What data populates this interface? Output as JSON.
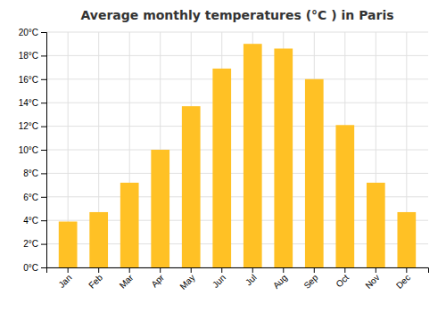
{
  "chart_data": {
    "type": "bar",
    "title": "Average monthly temperatures (°C ) in Paris",
    "categories": [
      "Jan",
      "Feb",
      "Mar",
      "Apr",
      "May",
      "Jun",
      "Jul",
      "Aug",
      "Sep",
      "Oct",
      "Nov",
      "Dec"
    ],
    "values": [
      3.9,
      4.7,
      7.2,
      10.0,
      13.7,
      16.9,
      19.0,
      18.6,
      16.0,
      12.1,
      7.2,
      4.7
    ],
    "color": "#FFC125",
    "ylim": [
      0,
      20
    ],
    "yticks": [
      {
        "value": 0,
        "label": "0°C"
      },
      {
        "value": 2,
        "label": "2°C"
      },
      {
        "value": 4,
        "label": "4°C"
      },
      {
        "value": 6,
        "label": "6°C"
      },
      {
        "value": 8,
        "label": "8°C"
      },
      {
        "value": 10,
        "label": "10°C"
      },
      {
        "value": 12,
        "label": "12°C"
      },
      {
        "value": 14,
        "label": "14°C"
      },
      {
        "value": 16,
        "label": "16°C"
      },
      {
        "value": 18,
        "label": "18°C"
      },
      {
        "value": 20,
        "label": "20°C"
      }
    ],
    "grid": true
  }
}
